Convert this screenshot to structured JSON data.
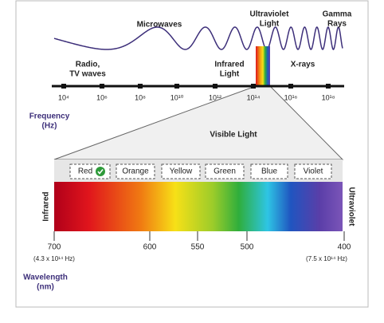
{
  "top_labels": {
    "microwaves": "Microwaves",
    "ultraviolet": [
      "Ultraviolet",
      "Light"
    ],
    "gamma": [
      "Gamma",
      "Rays"
    ],
    "radio": [
      "Radio,",
      "TV waves"
    ],
    "infrared": [
      "Infrared",
      "Light"
    ],
    "xrays": "X-rays"
  },
  "frequency_axis": {
    "label": [
      "Frequency",
      "(Hz)"
    ],
    "ticks": [
      "10⁴",
      "10⁶",
      "10⁸",
      "10¹⁰",
      "10¹²",
      "10¹⁴",
      "10¹⁶",
      "10¹⁸"
    ]
  },
  "visible": {
    "title": "Visible Light",
    "buttons": [
      "Red",
      "Orange",
      "Yellow",
      "Green",
      "Blue",
      "Violet"
    ],
    "left_label": "Infrared",
    "right_label": "Ultraviolet"
  },
  "wavelength_axis": {
    "label": [
      "Wavelength",
      "(nm)"
    ],
    "ticks": [
      700,
      600,
      550,
      500,
      400
    ],
    "left_note": "(4.3 x 10¹⁴ Hz)",
    "right_note": "(7.5 x 10¹⁴ Hz)"
  }
}
